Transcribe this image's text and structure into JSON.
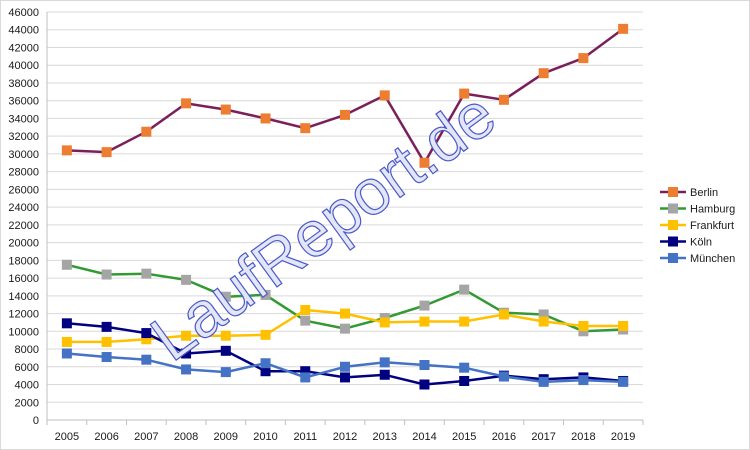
{
  "watermark": "LaufReport.de",
  "chart_data": {
    "type": "line",
    "title": "",
    "xlabel": "",
    "ylabel": "",
    "x": [
      "2005",
      "2006",
      "2007",
      "2008",
      "2009",
      "2010",
      "2011",
      "2012",
      "2013",
      "2014",
      "2015",
      "2016",
      "2017",
      "2018",
      "2019"
    ],
    "ylim": [
      0,
      46000
    ],
    "ytick_step": 2000,
    "grid": true,
    "legend_position": "right",
    "series": [
      {
        "name": "Berlin",
        "line_color": "#7b1f5b",
        "marker_color": "#ed7d31",
        "values": [
          30400,
          30200,
          32500,
          35700,
          35000,
          34000,
          32900,
          34400,
          36600,
          29000,
          36800,
          36100,
          39100,
          40800,
          44100
        ]
      },
      {
        "name": "Hamburg",
        "line_color": "#339933",
        "marker_color": "#a5a5a5",
        "values": [
          17500,
          16400,
          16500,
          15800,
          13900,
          14100,
          11200,
          10300,
          11500,
          12900,
          14700,
          12100,
          11900,
          10000,
          10200
        ]
      },
      {
        "name": "Frankfurt",
        "line_color": "#ffc000",
        "marker_color": "#ffc000",
        "values": [
          8800,
          8800,
          9100,
          9500,
          9500,
          9600,
          12400,
          12000,
          11000,
          11100,
          11100,
          11900,
          11100,
          10600,
          10600
        ]
      },
      {
        "name": "Köln",
        "line_color": "#000080",
        "marker_color": "#000080",
        "values": [
          10900,
          10500,
          9800,
          7500,
          7800,
          5500,
          5500,
          4800,
          5100,
          4000,
          4400,
          5000,
          4600,
          4800,
          4400
        ]
      },
      {
        "name": "München",
        "line_color": "#4472c4",
        "marker_color": "#4472c4",
        "values": [
          7500,
          7100,
          6800,
          5700,
          5400,
          6400,
          4800,
          6000,
          6500,
          6200,
          5900,
          4900,
          4300,
          4500,
          4300
        ]
      }
    ]
  }
}
